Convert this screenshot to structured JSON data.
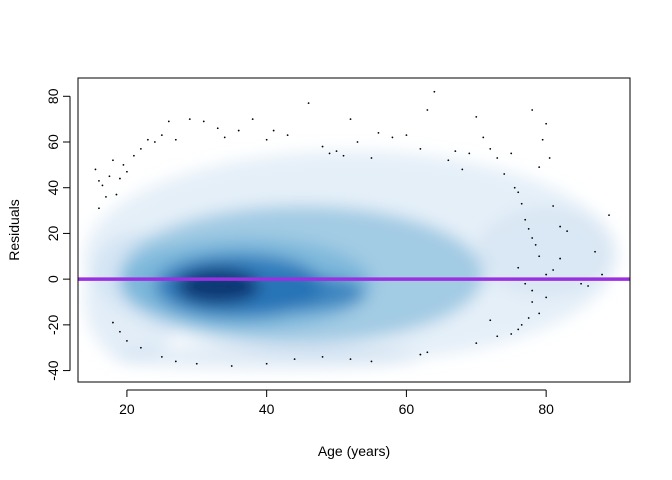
{
  "chart_data": {
    "type": "scatter",
    "subtype": "smoothed-density-scatter",
    "title": "",
    "xlabel": "Age (years)",
    "ylabel": "Residuals",
    "xlim": [
      13,
      92
    ],
    "ylim": [
      -45,
      88
    ],
    "xticks": [
      20,
      40,
      60,
      80
    ],
    "yticks": [
      -40,
      -20,
      0,
      20,
      40,
      60,
      80
    ],
    "xtick_labels": [
      "20",
      "40",
      "60",
      "80"
    ],
    "ytick_labels": [
      "-40",
      "-20",
      "0",
      "20",
      "40",
      "60",
      "80"
    ],
    "grid": false,
    "legend": "none",
    "density_color_scale": [
      "#ffffff",
      "#c6dbef",
      "#6baed6",
      "#2171b5",
      "#08306b"
    ],
    "reference_line": {
      "y": 0,
      "color": "#9b30e0"
    },
    "density_peak": {
      "x": 33,
      "y": -3
    },
    "outlier_points": [
      [
        15.5,
        48
      ],
      [
        16,
        43
      ],
      [
        16.5,
        41
      ],
      [
        17,
        36
      ],
      [
        16,
        31
      ],
      [
        18,
        52
      ],
      [
        17.5,
        45
      ],
      [
        19,
        44
      ],
      [
        18.5,
        37
      ],
      [
        19.5,
        50
      ],
      [
        20,
        47
      ],
      [
        21,
        54
      ],
      [
        22,
        57
      ],
      [
        23,
        61
      ],
      [
        24,
        60
      ],
      [
        25,
        63
      ],
      [
        26,
        69
      ],
      [
        27,
        61
      ],
      [
        29,
        70
      ],
      [
        31,
        69
      ],
      [
        33,
        66
      ],
      [
        34,
        62
      ],
      [
        36,
        65
      ],
      [
        38,
        70
      ],
      [
        40,
        61
      ],
      [
        41,
        65
      ],
      [
        43,
        63
      ],
      [
        46,
        77
      ],
      [
        48,
        58
      ],
      [
        49,
        55
      ],
      [
        50,
        56
      ],
      [
        51,
        54
      ],
      [
        52,
        70
      ],
      [
        53,
        60
      ],
      [
        55,
        53
      ],
      [
        56,
        64
      ],
      [
        58,
        62
      ],
      [
        60,
        63
      ],
      [
        62,
        57
      ],
      [
        63,
        74
      ],
      [
        64,
        82
      ],
      [
        66,
        52
      ],
      [
        67,
        56
      ],
      [
        68,
        48
      ],
      [
        69,
        55
      ],
      [
        70,
        71
      ],
      [
        71,
        62
      ],
      [
        72,
        57
      ],
      [
        73,
        53
      ],
      [
        74,
        46
      ],
      [
        75,
        55
      ],
      [
        75.5,
        40
      ],
      [
        76,
        38
      ],
      [
        76.5,
        33
      ],
      [
        77,
        26
      ],
      [
        77.5,
        22
      ],
      [
        78,
        18
      ],
      [
        78.5,
        15
      ],
      [
        79,
        10
      ],
      [
        80,
        68
      ],
      [
        80.5,
        53
      ],
      [
        81,
        32
      ],
      [
        82,
        23
      ],
      [
        79.5,
        61
      ],
      [
        78,
        74
      ],
      [
        79,
        49
      ],
      [
        80,
        2
      ],
      [
        81,
        4
      ],
      [
        82,
        9
      ],
      [
        83,
        21
      ],
      [
        85,
        -2
      ],
      [
        86,
        -3
      ],
      [
        87,
        12
      ],
      [
        88,
        2
      ],
      [
        89,
        28
      ],
      [
        76,
        5
      ],
      [
        77,
        -2
      ],
      [
        78,
        -10
      ],
      [
        79,
        -15
      ],
      [
        80,
        -8
      ],
      [
        76.5,
        -20
      ],
      [
        77.5,
        -17
      ],
      [
        75,
        -24
      ],
      [
        76,
        -22
      ],
      [
        78,
        -5
      ],
      [
        72,
        -18
      ],
      [
        73,
        -25
      ],
      [
        70,
        -28
      ],
      [
        63,
        -32
      ],
      [
        62,
        -33
      ],
      [
        55,
        -36
      ],
      [
        52,
        -35
      ],
      [
        48,
        -34
      ],
      [
        44,
        -35
      ],
      [
        40,
        -37
      ],
      [
        35,
        -38
      ],
      [
        30,
        -37
      ],
      [
        27,
        -36
      ],
      [
        25,
        -34
      ],
      [
        22,
        -30
      ],
      [
        20,
        -27
      ],
      [
        19,
        -23
      ],
      [
        18,
        -19
      ]
    ]
  }
}
